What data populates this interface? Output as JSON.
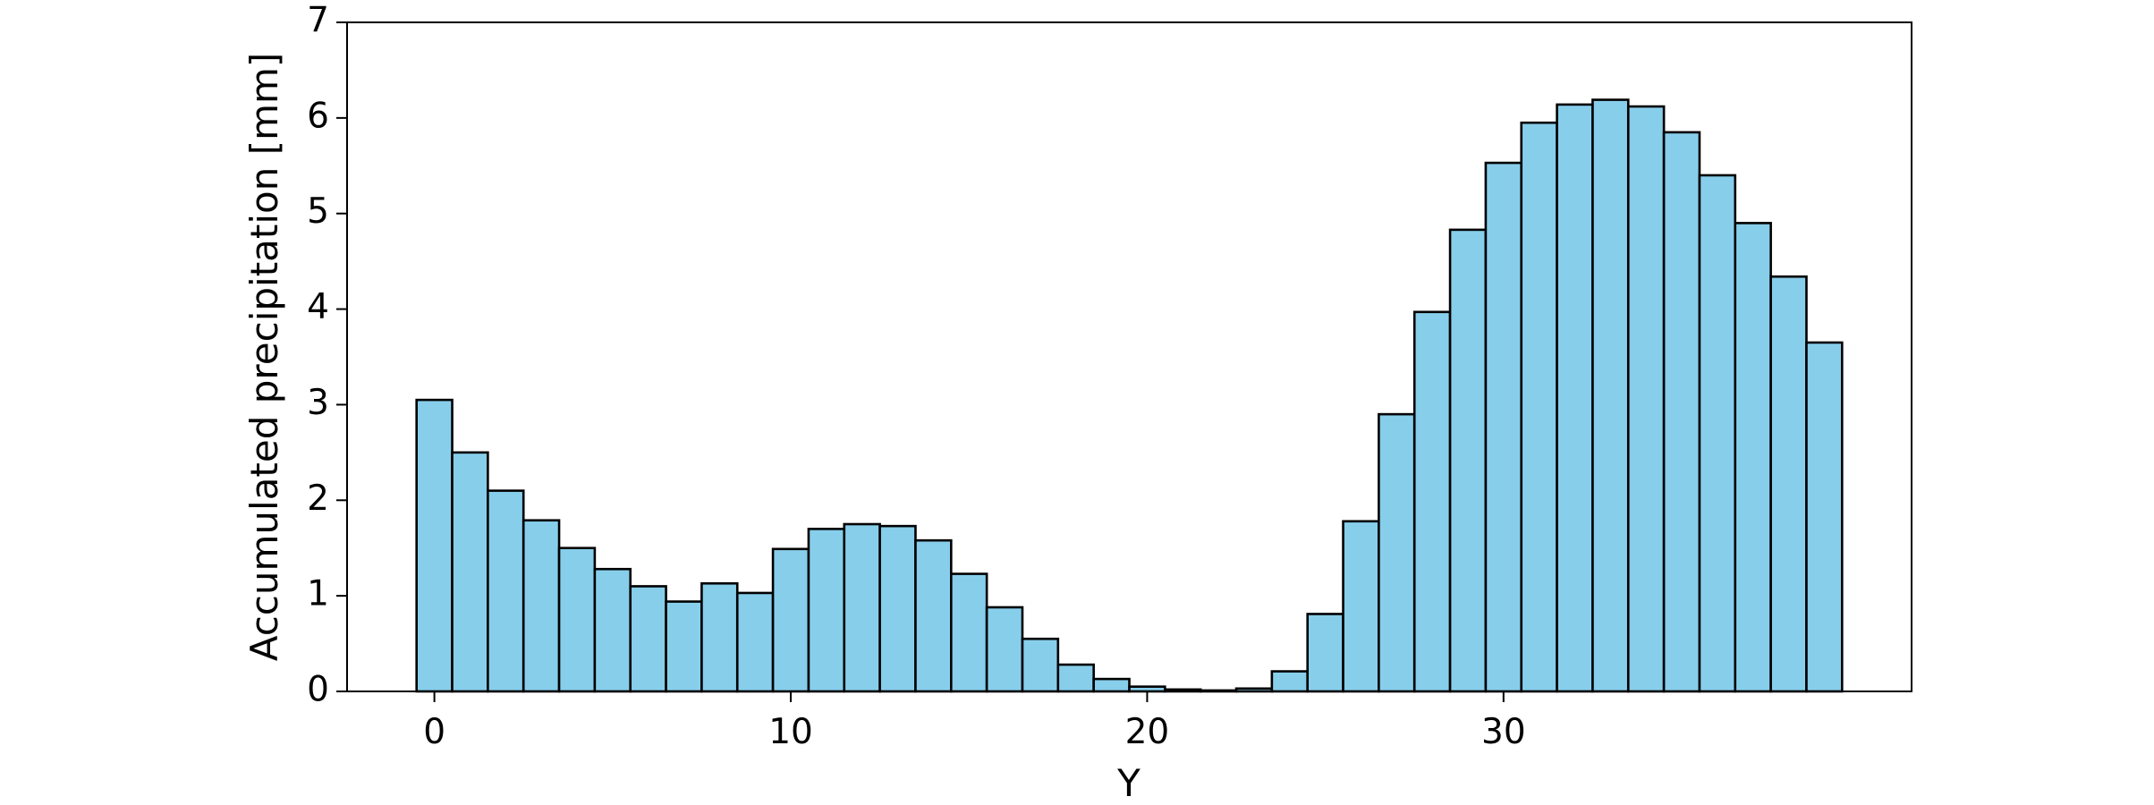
{
  "chart_data": {
    "type": "bar",
    "xlabel": "Y",
    "ylabel": "Accumulated precipitation [mm]",
    "x": [
      0,
      1,
      2,
      3,
      4,
      5,
      6,
      7,
      8,
      9,
      10,
      11,
      12,
      13,
      14,
      15,
      16,
      17,
      18,
      19,
      20,
      21,
      22,
      23,
      24,
      25,
      26,
      27,
      28,
      29,
      30,
      31,
      32,
      33,
      34,
      35,
      36,
      37,
      38,
      39
    ],
    "values": [
      3.05,
      2.5,
      2.1,
      1.79,
      1.5,
      1.28,
      1.1,
      0.94,
      1.13,
      1.03,
      1.49,
      1.7,
      1.75,
      1.73,
      1.58,
      1.23,
      0.88,
      0.55,
      0.28,
      0.13,
      0.05,
      0.02,
      0.01,
      0.03,
      0.21,
      0.81,
      1.78,
      2.9,
      3.97,
      4.83,
      5.53,
      5.95,
      6.14,
      6.19,
      6.12,
      5.85,
      5.4,
      4.9,
      4.34,
      3.65
    ],
    "xlim": [
      -2.45,
      41.45
    ],
    "ylim": [
      0,
      7
    ],
    "xticks": [
      0,
      10,
      20,
      30
    ],
    "yticks": [
      0,
      1,
      2,
      3,
      4,
      5,
      6,
      7
    ],
    "grid": false,
    "colors": {
      "bar_fill": "#87ceeb",
      "bar_edge": "#000000",
      "axis": "#000000"
    }
  }
}
